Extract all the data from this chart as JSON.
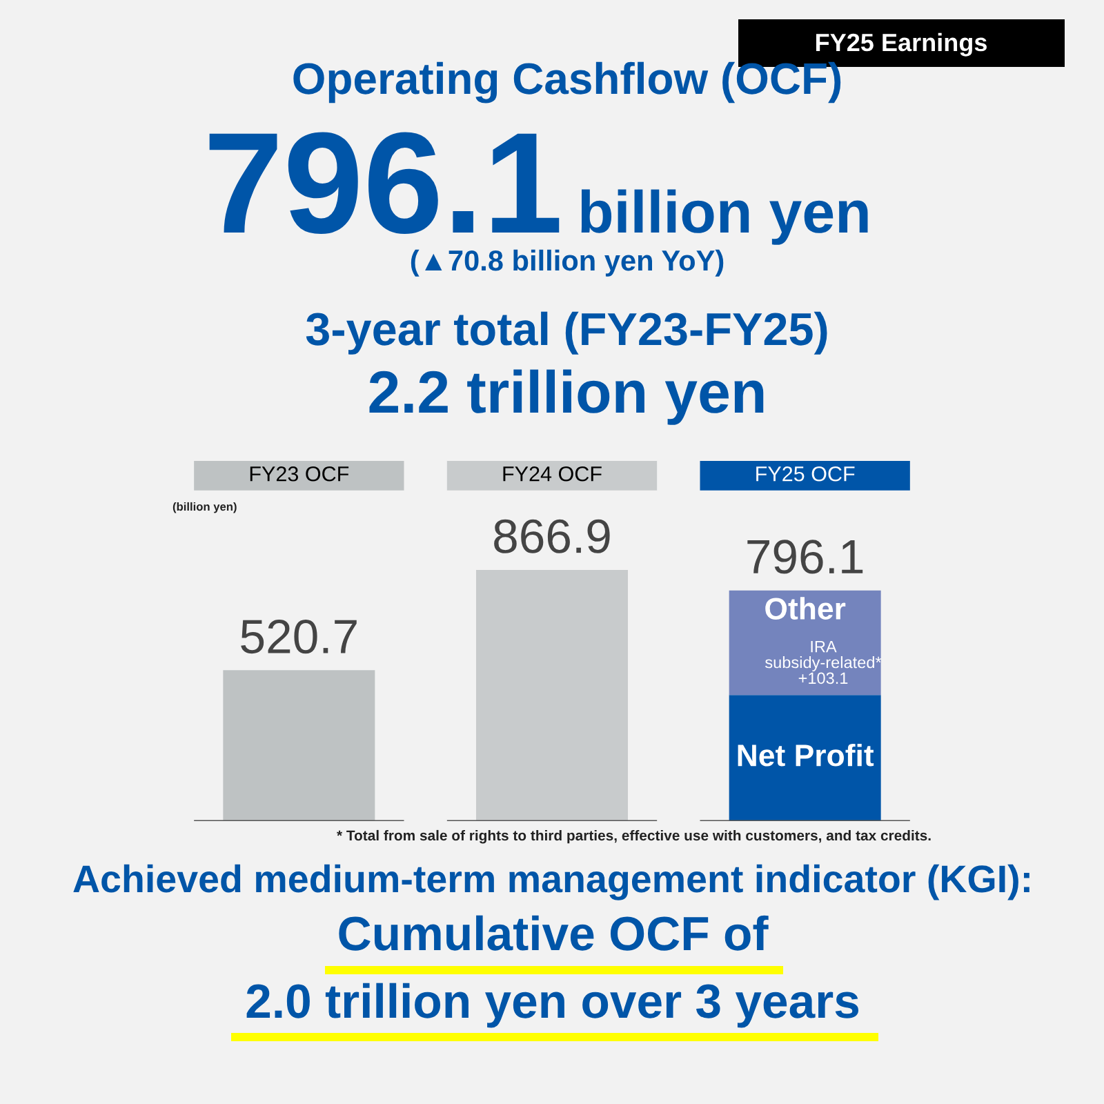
{
  "chart_data": {
    "type": "bar",
    "stacked": true,
    "title": "Operating Cashflow (OCF)",
    "categories": [
      "FY23 OCF",
      "FY24 OCF",
      "FY25 OCF"
    ],
    "series": [
      {
        "colors": [
          "#bec2c3",
          "#c8cbcc",
          null
        ],
        "values": [
          520.7,
          866.9,
          null
        ],
        "value_labels": [
          "520.7",
          "866.9",
          null
        ]
      },
      {
        "name": "Net Profit",
        "color": "#0055a8",
        "values": [
          null,
          null,
          435
        ]
      },
      {
        "name": "Other",
        "color": "#7484bd",
        "values": [
          null,
          null,
          361.1
        ]
      }
    ],
    "totals": [
      null,
      null,
      "796.1"
    ],
    "grid": "y",
    "annotations": [
      "FY25 Earnings",
      "796.1",
      "billion yen",
      "(▲70.8 billion yen YoY)",
      "3-year total (FY23-FY25)",
      "2.2 trillion yen",
      "(billion yen)",
      "* Total from sale of rights to third parties, effective use with customers, and tax credits.",
      "Achieved medium-term management indicator (KGI):",
      "Cumulative OCF of",
      "2.0 trillion yen over 3 years",
      "IRA\nsubsidy-related*\n+103.1"
    ],
    "legend": false
  }
}
